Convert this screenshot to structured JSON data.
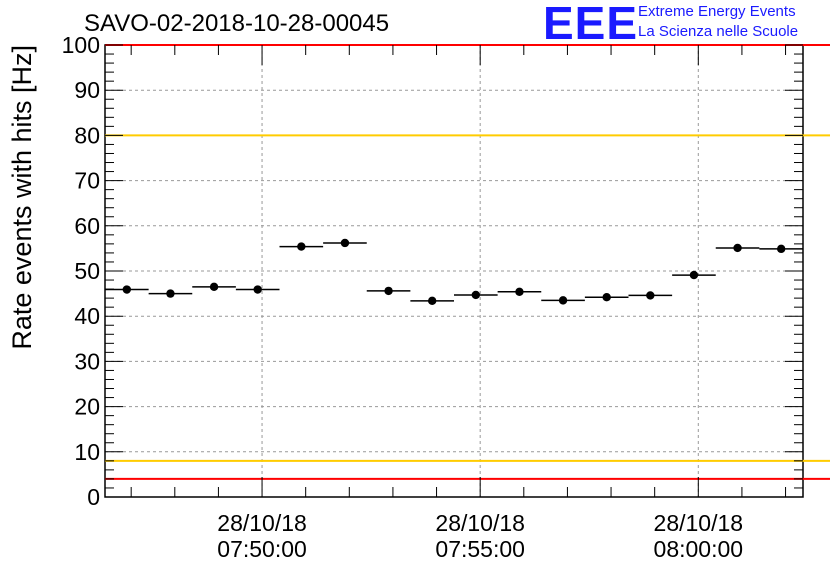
{
  "title": "SAVO-02-2018-10-28-00045",
  "logo": {
    "mark": "EEE",
    "line1": "Extreme Energy Events",
    "line2": "La Scienza nelle Scuole",
    "color": "#1a1aff"
  },
  "chart_data": {
    "type": "scatter",
    "ylabel": "Rate events with hits [Hz]",
    "ylim": [
      0,
      100
    ],
    "yticks": [
      "0",
      "10",
      "20",
      "30",
      "40",
      "50",
      "60",
      "70",
      "80",
      "90",
      "100"
    ],
    "xlim": [
      "2018-10-28 07:46:24",
      "2018-10-28 08:02:24"
    ],
    "xticks": [
      {
        "time": "2018-10-28 07:50:00",
        "date": "28/10/18",
        "clock": "07:50:00"
      },
      {
        "time": "2018-10-28 07:55:00",
        "date": "28/10/18",
        "clock": "07:55:00"
      },
      {
        "time": "2018-10-28 08:00:00",
        "date": "28/10/18",
        "clock": "08:00:00"
      }
    ],
    "grid": true,
    "reference_lines": [
      {
        "y": 4,
        "color": "#ff0000"
      },
      {
        "y": 8,
        "color": "#ffcc00"
      },
      {
        "y": 80,
        "color": "#ffcc00"
      },
      {
        "y": 100,
        "color": "#ff0000"
      }
    ],
    "series": [
      {
        "color": "#000000",
        "points": [
          {
            "x_start": "2018-10-28 07:46:24",
            "x_end": "2018-10-28 07:47:24",
            "y": 45.9
          },
          {
            "x_start": "2018-10-28 07:47:24",
            "x_end": "2018-10-28 07:48:24",
            "y": 45.0
          },
          {
            "x_start": "2018-10-28 07:48:24",
            "x_end": "2018-10-28 07:49:24",
            "y": 46.5
          },
          {
            "x_start": "2018-10-28 07:49:24",
            "x_end": "2018-10-28 07:50:24",
            "y": 45.9
          },
          {
            "x_start": "2018-10-28 07:50:24",
            "x_end": "2018-10-28 07:51:24",
            "y": 55.4
          },
          {
            "x_start": "2018-10-28 07:51:24",
            "x_end": "2018-10-28 07:52:24",
            "y": 56.2
          },
          {
            "x_start": "2018-10-28 07:52:24",
            "x_end": "2018-10-28 07:53:24",
            "y": 45.6
          },
          {
            "x_start": "2018-10-28 07:53:24",
            "x_end": "2018-10-28 07:54:24",
            "y": 43.4
          },
          {
            "x_start": "2018-10-28 07:54:24",
            "x_end": "2018-10-28 07:55:24",
            "y": 44.7
          },
          {
            "x_start": "2018-10-28 07:55:24",
            "x_end": "2018-10-28 07:56:24",
            "y": 45.4
          },
          {
            "x_start": "2018-10-28 07:56:24",
            "x_end": "2018-10-28 07:57:24",
            "y": 43.5
          },
          {
            "x_start": "2018-10-28 07:57:24",
            "x_end": "2018-10-28 07:58:24",
            "y": 44.2
          },
          {
            "x_start": "2018-10-28 07:58:24",
            "x_end": "2018-10-28 07:59:24",
            "y": 44.6
          },
          {
            "x_start": "2018-10-28 07:59:24",
            "x_end": "2018-10-28 08:00:24",
            "y": 49.1
          },
          {
            "x_start": "2018-10-28 08:00:24",
            "x_end": "2018-10-28 08:01:24",
            "y": 55.1
          },
          {
            "x_start": "2018-10-28 08:01:24",
            "x_end": "2018-10-28 08:02:24",
            "y": 54.9
          }
        ]
      }
    ]
  }
}
